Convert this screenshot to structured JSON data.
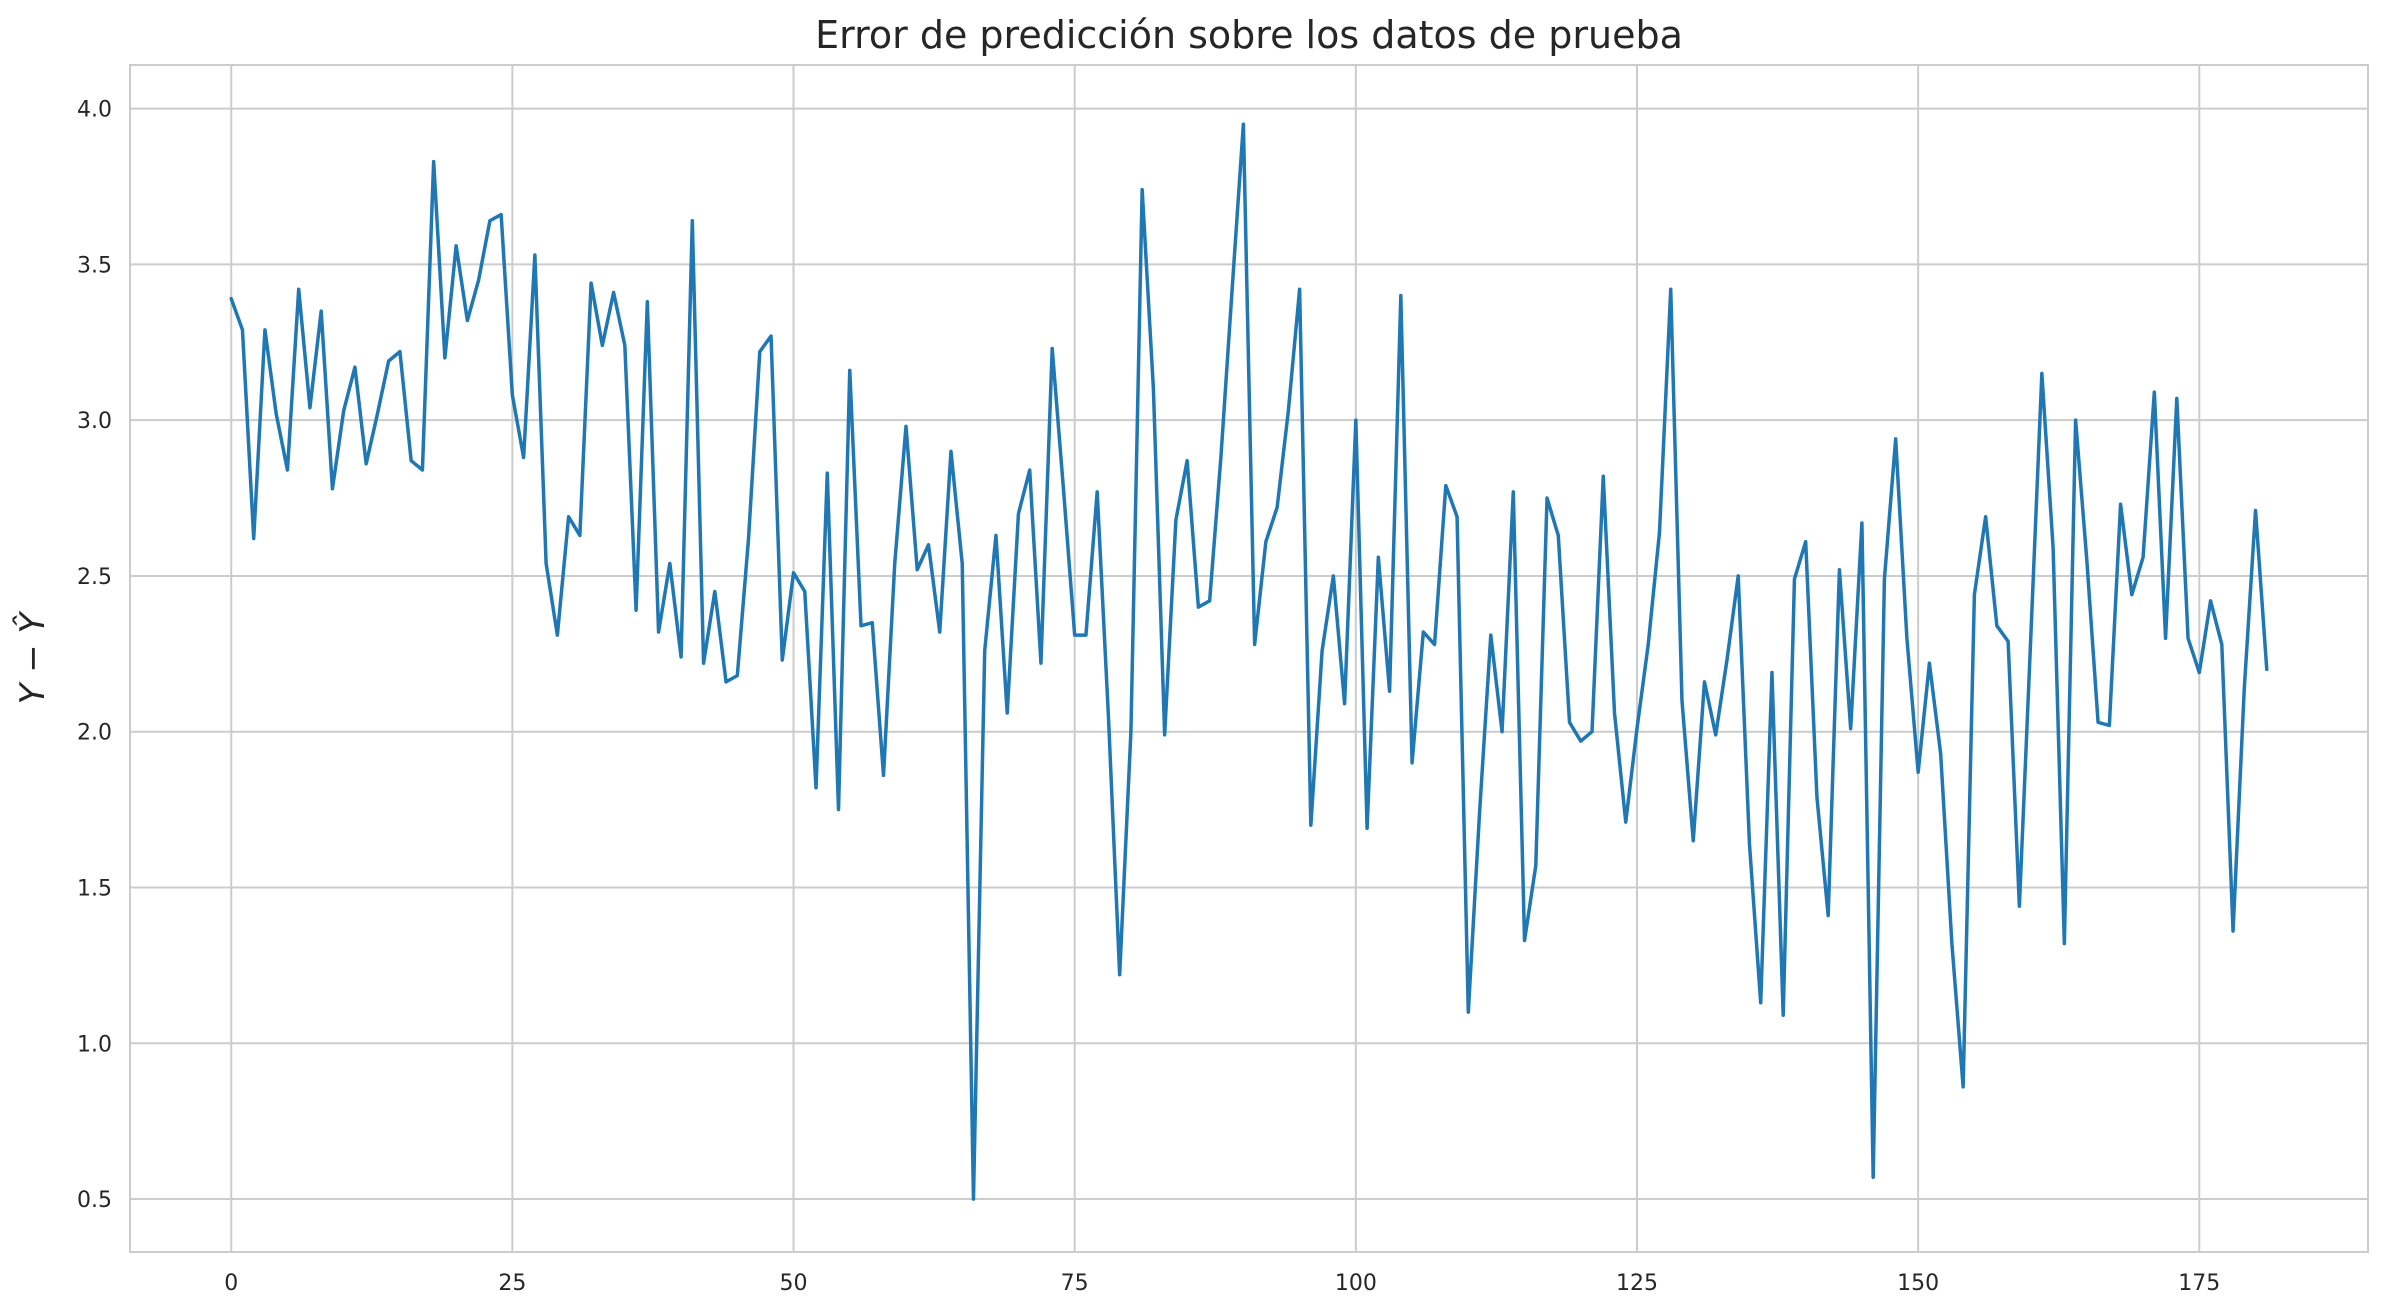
{
  "chart_data": {
    "type": "line",
    "title": "Error de predicción sobre los datos de prueba",
    "xlabel": "",
    "ylabel": "Y − Ŷ",
    "xlim": [
      -9,
      190
    ],
    "ylim": [
      0.33,
      4.14
    ],
    "x_ticks": [
      0,
      25,
      50,
      75,
      100,
      125,
      150,
      175
    ],
    "y_ticks": [
      0.5,
      1.0,
      1.5,
      2.0,
      2.5,
      3.0,
      3.5,
      4.0
    ],
    "x_tick_labels": [
      "0",
      "25",
      "50",
      "75",
      "100",
      "125",
      "150",
      "175"
    ],
    "y_tick_labels": [
      "0.5",
      "1.0",
      "1.5",
      "2.0",
      "2.5",
      "3.0",
      "3.5",
      "4.0"
    ],
    "grid": true,
    "series": [
      {
        "color": "#1f77b4",
        "x_start": 0,
        "values": [
          3.39,
          3.29,
          2.62,
          3.29,
          3.02,
          2.84,
          3.42,
          3.04,
          3.35,
          2.78,
          3.03,
          3.17,
          2.86,
          3.02,
          3.19,
          3.22,
          2.87,
          2.84,
          3.83,
          3.2,
          3.56,
          3.32,
          3.45,
          3.64,
          3.66,
          3.08,
          2.88,
          3.53,
          2.54,
          2.31,
          2.69,
          2.63,
          3.44,
          3.24,
          3.41,
          3.24,
          2.39,
          3.38,
          2.32,
          2.54,
          2.24,
          3.64,
          2.22,
          2.45,
          2.16,
          2.18,
          2.62,
          3.22,
          3.27,
          2.23,
          2.51,
          2.45,
          1.82,
          2.83,
          1.75,
          3.16,
          2.34,
          2.35,
          1.86,
          2.54,
          2.98,
          2.52,
          2.6,
          2.32,
          2.9,
          2.54,
          0.5,
          2.26,
          2.63,
          2.06,
          2.7,
          2.84,
          2.22,
          3.23,
          2.78,
          2.31,
          2.31,
          2.77,
          2.05,
          1.22,
          2.0,
          3.74,
          3.1,
          1.99,
          2.68,
          2.87,
          2.4,
          2.42,
          2.88,
          3.42,
          3.95,
          2.28,
          2.61,
          2.72,
          3.03,
          3.42,
          1.7,
          2.26,
          2.5,
          2.09,
          3.0,
          1.69,
          2.56,
          2.13,
          3.4,
          1.9,
          2.32,
          2.28,
          2.79,
          2.69,
          1.1,
          1.74,
          2.31,
          2.0,
          2.77,
          1.33,
          1.57,
          2.75,
          2.63,
          2.03,
          1.97,
          2.0,
          2.82,
          2.06,
          1.71,
          2.01,
          2.28,
          2.64,
          3.42,
          2.1,
          1.65,
          2.16,
          1.99,
          2.23,
          2.5,
          1.64,
          1.13,
          2.19,
          1.09,
          2.49,
          2.61,
          1.79,
          1.41,
          2.52,
          2.01,
          2.67,
          0.57,
          2.49,
          2.94,
          2.3,
          1.87,
          2.22,
          1.93,
          1.32,
          0.86,
          2.44,
          2.69,
          2.34,
          2.29,
          1.44,
          2.29,
          3.15,
          2.59,
          1.32,
          3.0,
          2.55,
          2.03,
          2.02,
          2.73,
          2.44,
          2.56,
          3.09,
          2.3,
          3.07,
          2.3,
          2.19,
          2.42,
          2.28,
          1.36,
          2.14,
          2.71,
          2.2
        ]
      }
    ]
  }
}
